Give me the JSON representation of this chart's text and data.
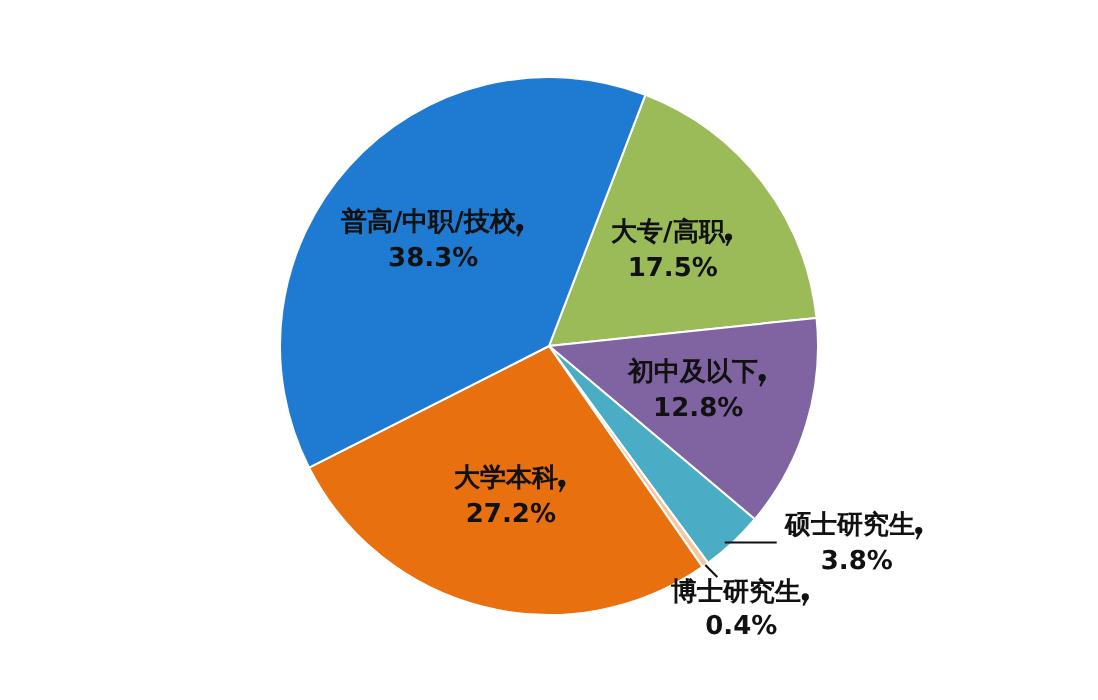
{
  "chart_data": {
    "type": "pie",
    "categories": [
      "大专/高职",
      "初中及以下",
      "硕士研究生",
      "博士研究生",
      "大学本科",
      "普高/中职/技校"
    ],
    "values": [
      17.5,
      12.8,
      3.8,
      0.4,
      27.2,
      38.3
    ],
    "value_labels": [
      "17.5%",
      "12.8%",
      "3.8%",
      "0.4%",
      "27.2%",
      "38.3%"
    ],
    "colors": [
      "#9bbb59",
      "#8064a2",
      "#4bacc6",
      "#f5c6a0",
      "#e8700f",
      "#1f7bd1"
    ],
    "legend": false
  }
}
